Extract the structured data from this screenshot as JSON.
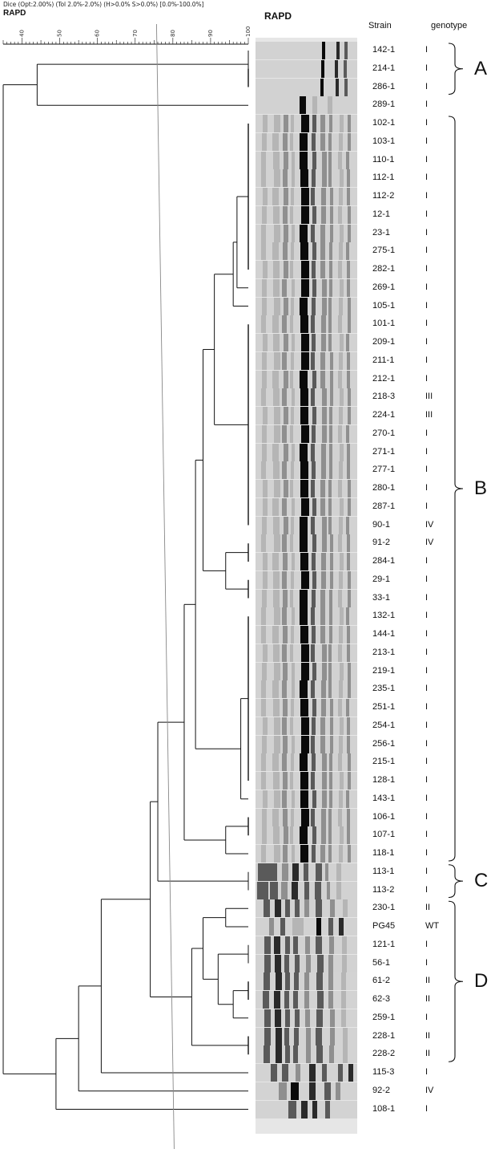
{
  "header": {
    "settings_line": "Dice (Opt:2.00%) (Tol 2.0%-2.0%) (H>0.0% S>0.0%) [0.0%-100.0%]",
    "dendrogram_title": "RAPD",
    "gel_title": "RAPD",
    "strain_column": "Strain",
    "genotype_column": "genotype"
  },
  "scale": {
    "range": [
      35,
      100
    ],
    "tick_labels": [
      "40",
      "50",
      "60",
      "70",
      "80",
      "90",
      "100"
    ],
    "tick_values": [
      40,
      50,
      60,
      70,
      80,
      90,
      100
    ],
    "cutoff_value": 78
  },
  "samples": [
    {
      "strain": "142-1",
      "genotype": "I"
    },
    {
      "strain": "214-1",
      "genotype": "I"
    },
    {
      "strain": "286-1",
      "genotype": "I"
    },
    {
      "strain": "289-1",
      "genotype": "I"
    },
    {
      "strain": "102-1",
      "genotype": "I"
    },
    {
      "strain": "103-1",
      "genotype": "I"
    },
    {
      "strain": "110-1",
      "genotype": "I"
    },
    {
      "strain": "112-1",
      "genotype": "I"
    },
    {
      "strain": "112-2",
      "genotype": "I"
    },
    {
      "strain": "12-1",
      "genotype": "I"
    },
    {
      "strain": "23-1",
      "genotype": "I"
    },
    {
      "strain": "275-1",
      "genotype": "I"
    },
    {
      "strain": "282-1",
      "genotype": "I"
    },
    {
      "strain": "269-1",
      "genotype": "I"
    },
    {
      "strain": "105-1",
      "genotype": "I"
    },
    {
      "strain": "101-1",
      "genotype": "I"
    },
    {
      "strain": "209-1",
      "genotype": "I"
    },
    {
      "strain": "211-1",
      "genotype": "I"
    },
    {
      "strain": "212-1",
      "genotype": "I"
    },
    {
      "strain": "218-3",
      "genotype": "III"
    },
    {
      "strain": "224-1",
      "genotype": "III"
    },
    {
      "strain": "270-1",
      "genotype": "I"
    },
    {
      "strain": "271-1",
      "genotype": "I"
    },
    {
      "strain": "277-1",
      "genotype": "I"
    },
    {
      "strain": "280-1",
      "genotype": "I"
    },
    {
      "strain": "287-1",
      "genotype": "I"
    },
    {
      "strain": "90-1",
      "genotype": "IV"
    },
    {
      "strain": "91-2",
      "genotype": "IV"
    },
    {
      "strain": "284-1",
      "genotype": "I"
    },
    {
      "strain": "29-1",
      "genotype": "I"
    },
    {
      "strain": "33-1",
      "genotype": "I"
    },
    {
      "strain": "132-1",
      "genotype": "I"
    },
    {
      "strain": "144-1",
      "genotype": "I"
    },
    {
      "strain": "213-1",
      "genotype": "I"
    },
    {
      "strain": "219-1",
      "genotype": "I"
    },
    {
      "strain": "235-1",
      "genotype": "I"
    },
    {
      "strain": "251-1",
      "genotype": "I"
    },
    {
      "strain": "254-1",
      "genotype": "I"
    },
    {
      "strain": "256-1",
      "genotype": "I"
    },
    {
      "strain": "215-1",
      "genotype": "I"
    },
    {
      "strain": "128-1",
      "genotype": "I"
    },
    {
      "strain": "143-1",
      "genotype": "I"
    },
    {
      "strain": "106-1",
      "genotype": "I"
    },
    {
      "strain": "107-1",
      "genotype": "I"
    },
    {
      "strain": "118-1",
      "genotype": "I"
    },
    {
      "strain": "113-1",
      "genotype": "I"
    },
    {
      "strain": "113-2",
      "genotype": "I"
    },
    {
      "strain": "230-1",
      "genotype": "II"
    },
    {
      "strain": "PG45",
      "genotype": "WT"
    },
    {
      "strain": "121-1",
      "genotype": "I"
    },
    {
      "strain": "56-1",
      "genotype": "I"
    },
    {
      "strain": "61-2",
      "genotype": "II"
    },
    {
      "strain": "62-3",
      "genotype": "II"
    },
    {
      "strain": "259-1",
      "genotype": "I"
    },
    {
      "strain": "228-1",
      "genotype": "II"
    },
    {
      "strain": "228-2",
      "genotype": "II"
    },
    {
      "strain": "115-3",
      "genotype": "I"
    },
    {
      "strain": "92-2",
      "genotype": "IV"
    },
    {
      "strain": "108-1",
      "genotype": "I"
    }
  ],
  "groups": [
    {
      "label": "A",
      "first": 0,
      "last": 2
    },
    {
      "label": "B",
      "first": 4,
      "last": 44
    },
    {
      "label": "C",
      "first": 45,
      "last": 46
    },
    {
      "label": "D",
      "first": 47,
      "last": 55
    }
  ],
  "colors": {
    "line": "#111111",
    "cutoff_line": "#888888",
    "gel_background": "#e6e6e6",
    "band_dark": "#0a0a0a"
  }
}
